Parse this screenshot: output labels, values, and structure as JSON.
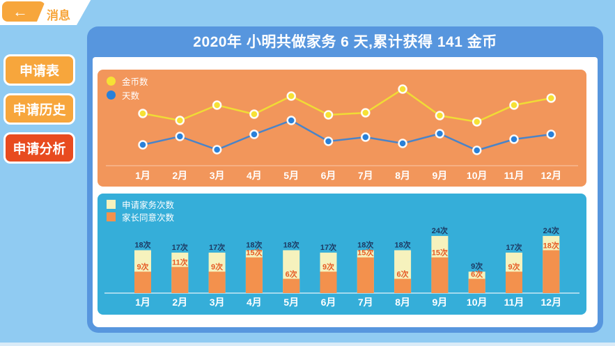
{
  "app": {
    "tab_label": "消息",
    "icons": {
      "back_arrow": "←"
    }
  },
  "sidebar": {
    "items": [
      {
        "label": "申请表",
        "active": false
      },
      {
        "label": "申请历史",
        "active": false
      },
      {
        "label": "申请分析",
        "active": true
      }
    ]
  },
  "main": {
    "title": "2020年 小明共做家务 6 天,累计获得 141 金币"
  },
  "colors": {
    "page_background": "#90CBF2",
    "card_blue": "#5796DE",
    "button_orange": "#F7A63C",
    "button_active_red": "#E84B1F",
    "line_panel_orange": "#F2965B",
    "bar_panel_teal": "#35AED9",
    "coin_line_yellow": "#F6E135",
    "days_line_blue": "#2980D8",
    "bar_cream": "#F6F2BD",
    "bar_orange": "#F3914D",
    "bar_total_label_navy": "#1D3A63",
    "bar_agreed_label_orange": "#E55A25"
  },
  "chart_data": [
    {
      "type": "line",
      "categories": [
        "1月",
        "2月",
        "3月",
        "4月",
        "5月",
        "6月",
        "7月",
        "8月",
        "9月",
        "10月",
        "11月",
        "12月"
      ],
      "series": [
        {
          "name": "金币数",
          "color": "#F6E135",
          "line_color": "#F0DC35",
          "values": [
            75,
            65,
            87,
            74,
            100,
            73,
            76,
            110,
            72,
            63,
            87,
            97
          ]
        },
        {
          "name": "天数",
          "color": "#2980D8",
          "line_color": "#4A84C8",
          "values": [
            30,
            42,
            23,
            45,
            65,
            35,
            41,
            32,
            46,
            22,
            38,
            45
          ]
        }
      ],
      "y_axis_visible": false,
      "note": "y-axis unlabeled in source; values are relative units estimated from point heights",
      "legend_position": "top-left",
      "grid": false
    },
    {
      "type": "bar",
      "subtype": "overlay",
      "categories": [
        "1月",
        "2月",
        "3月",
        "4月",
        "5月",
        "6月",
        "7月",
        "8月",
        "9月",
        "10月",
        "11月",
        "12月"
      ],
      "series": [
        {
          "name": "申请家务次数",
          "color": "#F6F2BD",
          "label_color": "#1D3A63",
          "values": [
            18,
            17,
            17,
            18,
            18,
            17,
            18,
            18,
            24,
            9,
            17,
            24
          ]
        },
        {
          "name": "家长同意次数",
          "color": "#F3914D",
          "label_color": "#E55A25",
          "values": [
            9,
            11,
            9,
            15,
            6,
            9,
            15,
            6,
            15,
            6,
            9,
            18
          ]
        }
      ],
      "label_suffix": "次",
      "unit": "次",
      "y_axis_visible": false,
      "legend_position": "top-left",
      "grid": false
    }
  ]
}
